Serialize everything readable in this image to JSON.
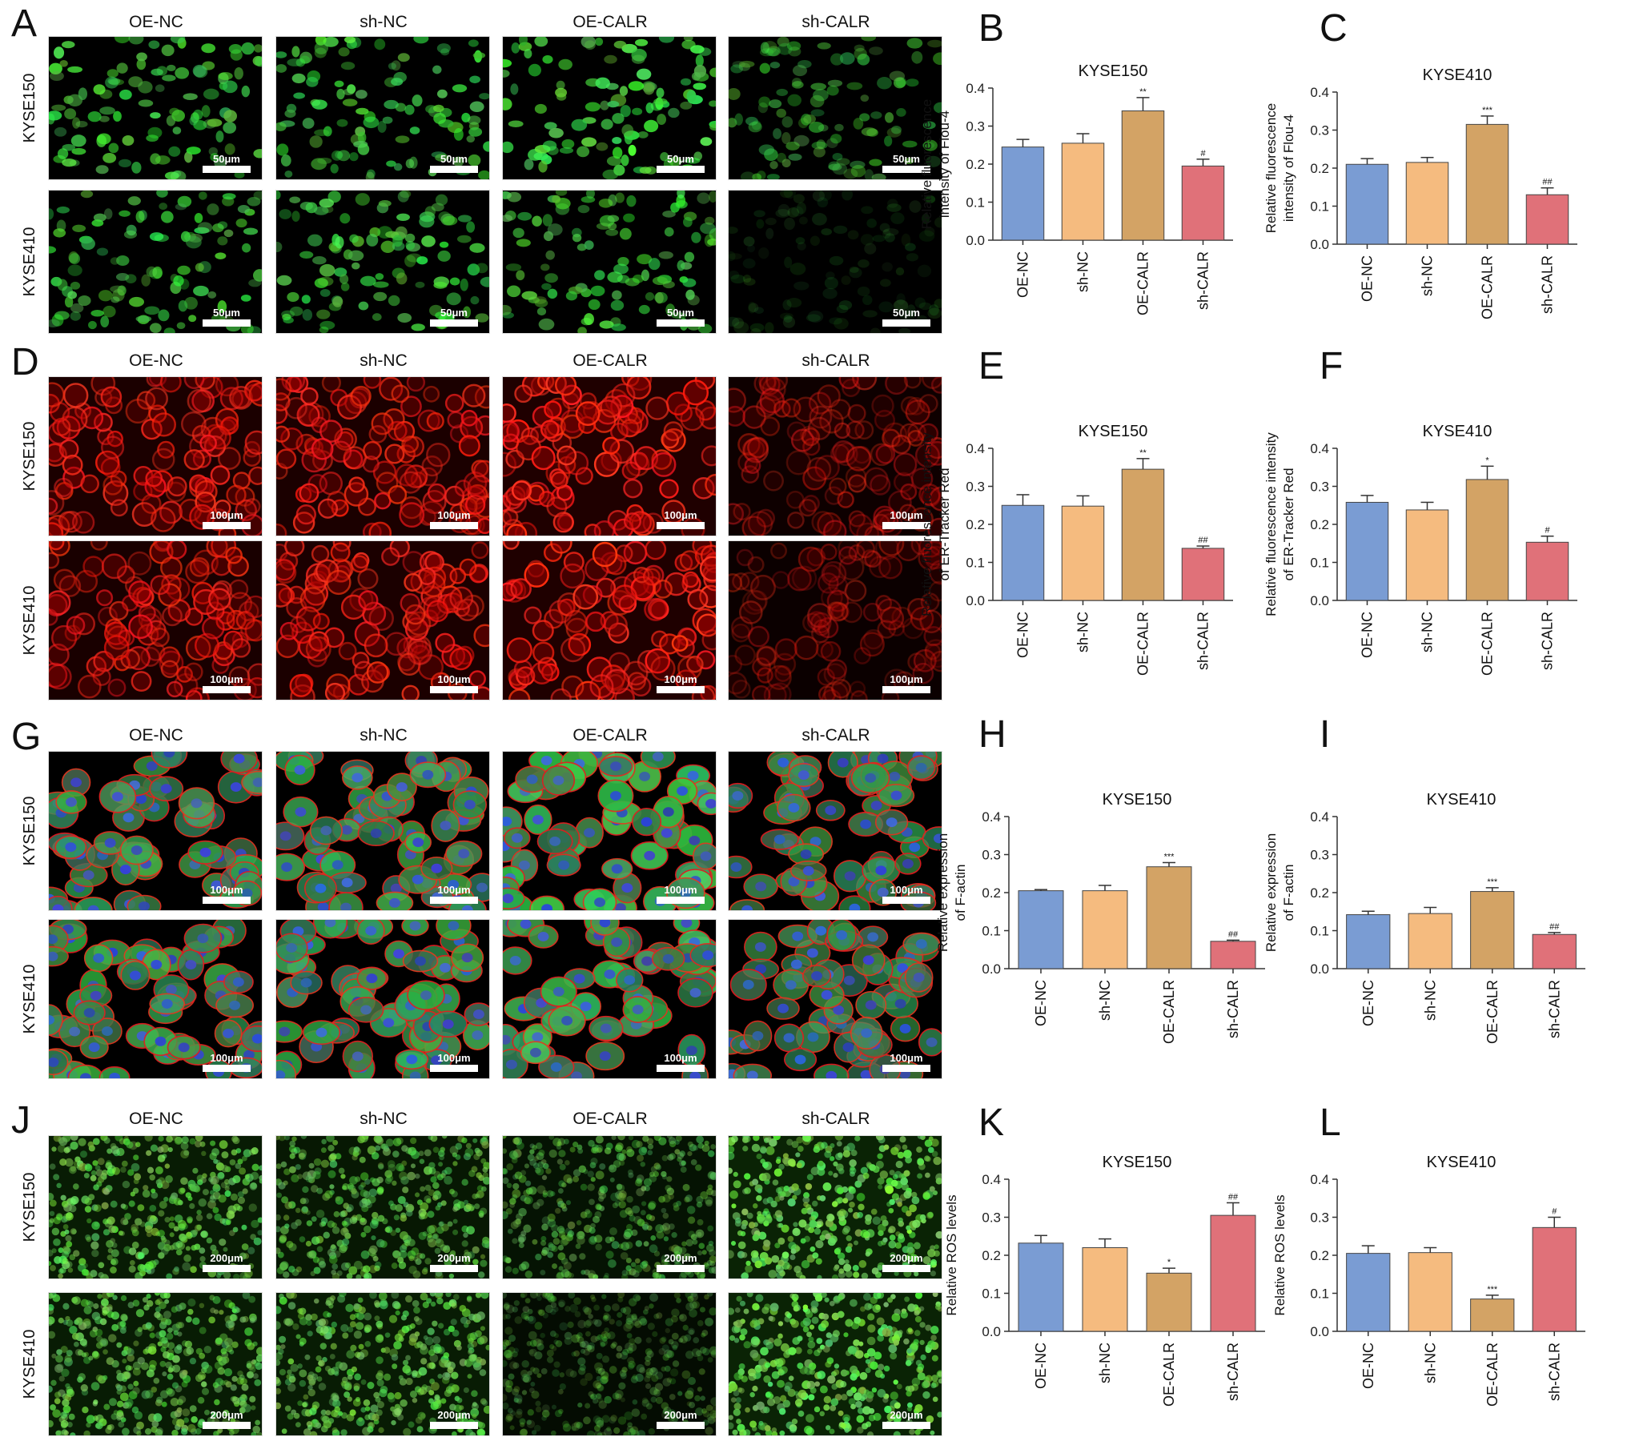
{
  "colors": {
    "OE-NC": "#7A9CD3",
    "sh-NC": "#F5BB7F",
    "OE-CALR": "#D3A365",
    "sh-CALR": "#E07179",
    "axis": "#333333"
  },
  "microscopy_columns": [
    "OE-NC",
    "sh-NC",
    "OE-CALR",
    "sh-CALR"
  ],
  "cell_lines": [
    "KYSE150",
    "KYSE410"
  ],
  "panels": [
    {
      "letter": "A",
      "stain": "green-cells",
      "scale_bars": [
        [
          "50μm",
          "50μm",
          "50μm",
          "50μm"
        ],
        [
          "50μm",
          "50μm",
          "50μm",
          "50μm"
        ]
      ],
      "brightness": [
        [
          0.85,
          0.85,
          1.0,
          0.55
        ],
        [
          0.8,
          0.8,
          0.8,
          0.15
        ]
      ]
    },
    {
      "letter": "D",
      "stain": "red-er",
      "scale_bars": [
        [
          "100μm",
          "100μm",
          "100μm",
          "100μm"
        ],
        [
          "100μm",
          "100μm",
          "100μm",
          "100μm"
        ]
      ],
      "brightness": [
        [
          0.85,
          0.85,
          1.0,
          0.45
        ],
        [
          0.8,
          0.85,
          1.0,
          0.35
        ]
      ]
    },
    {
      "letter": "G",
      "stain": "merged-factin",
      "scale_bars": [
        [
          "100μm",
          "100μm",
          "100μm",
          "100μm"
        ],
        [
          "100μm",
          "100μm",
          "100μm",
          "100μm"
        ]
      ],
      "brightness": [
        [
          0.7,
          0.75,
          1.0,
          0.55
        ],
        [
          0.75,
          0.75,
          0.9,
          0.5
        ]
      ]
    },
    {
      "letter": "J",
      "stain": "green-ros",
      "scale_bars": [
        [
          "200μm",
          "200μm",
          "200μm",
          "200μm"
        ],
        [
          "200μm",
          "200μm",
          "200μm",
          "200μm"
        ]
      ],
      "brightness": [
        [
          0.8,
          0.7,
          0.55,
          1.0
        ],
        [
          0.8,
          0.8,
          0.35,
          1.0
        ]
      ]
    }
  ],
  "chart_data": [
    {
      "panel": "B",
      "type": "bar",
      "title": "KYSE150",
      "ylabel_lines": [
        "Relative fluorescence",
        "intensity of Flou-4"
      ],
      "categories": [
        "OE-NC",
        "sh-NC",
        "OE-CALR",
        "sh-CALR"
      ],
      "values": [
        0.245,
        0.255,
        0.34,
        0.195
      ],
      "errors": [
        0.02,
        0.025,
        0.035,
        0.018
      ],
      "annotations": [
        "",
        "",
        "**",
        "#"
      ],
      "ylim": [
        0,
        0.4
      ],
      "yticks": [
        "0.0",
        "0.1",
        "0.2",
        "0.3",
        "0.4"
      ]
    },
    {
      "panel": "C",
      "type": "bar",
      "title": "KYSE410",
      "ylabel_lines": [
        "Relative fluorescence",
        "intensity of Flou-4"
      ],
      "categories": [
        "OE-NC",
        "sh-NC",
        "OE-CALR",
        "sh-CALR"
      ],
      "values": [
        0.21,
        0.215,
        0.315,
        0.13
      ],
      "errors": [
        0.015,
        0.013,
        0.022,
        0.018
      ],
      "annotations": [
        "",
        "",
        "***",
        "##"
      ],
      "ylim": [
        0,
        0.4
      ],
      "yticks": [
        "0.0",
        "0.1",
        "0.2",
        "0.3",
        "0.4"
      ]
    },
    {
      "panel": "E",
      "type": "bar",
      "title": "KYSE150",
      "ylabel_lines": [
        "Relative fluorescence intensity",
        "of ER-Tracker Red"
      ],
      "categories": [
        "OE-NC",
        "sh-NC",
        "OE-CALR",
        "sh-CALR"
      ],
      "values": [
        0.25,
        0.248,
        0.345,
        0.137
      ],
      "errors": [
        0.028,
        0.027,
        0.028,
        0.006
      ],
      "annotations": [
        "",
        "",
        "**",
        "##"
      ],
      "ylim": [
        0,
        0.4
      ],
      "yticks": [
        "0.0",
        "0.1",
        "0.2",
        "0.3",
        "0.4"
      ]
    },
    {
      "panel": "F",
      "type": "bar",
      "title": "KYSE410",
      "ylabel_lines": [
        "Relative fluorescence intensity",
        "of ER-Tracker Red"
      ],
      "categories": [
        "OE-NC",
        "sh-NC",
        "OE-CALR",
        "sh-CALR"
      ],
      "values": [
        0.258,
        0.238,
        0.318,
        0.153
      ],
      "errors": [
        0.018,
        0.02,
        0.035,
        0.016
      ],
      "annotations": [
        "",
        "",
        "*",
        "#"
      ],
      "ylim": [
        0,
        0.4
      ],
      "yticks": [
        "0.0",
        "0.1",
        "0.2",
        "0.3",
        "0.4"
      ]
    },
    {
      "panel": "H",
      "type": "bar",
      "title": "KYSE150",
      "ylabel_lines": [
        "Relative expression",
        "of F-actin"
      ],
      "categories": [
        "OE-NC",
        "sh-NC",
        "OE-CALR",
        "sh-CALR"
      ],
      "values": [
        0.205,
        0.205,
        0.268,
        0.072
      ],
      "errors": [
        0.003,
        0.014,
        0.011,
        0.003
      ],
      "annotations": [
        "",
        "",
        "***",
        "##"
      ],
      "ylim": [
        0,
        0.4
      ],
      "yticks": [
        "0.0",
        "0.1",
        "0.2",
        "0.3",
        "0.4"
      ]
    },
    {
      "panel": "I",
      "type": "bar",
      "title": "KYSE410",
      "ylabel_lines": [
        "Relative expression",
        "of F-actin"
      ],
      "categories": [
        "OE-NC",
        "sh-NC",
        "OE-CALR",
        "sh-CALR"
      ],
      "values": [
        0.142,
        0.145,
        0.203,
        0.09
      ],
      "errors": [
        0.009,
        0.016,
        0.01,
        0.005
      ],
      "annotations": [
        "",
        "",
        "***",
        "##"
      ],
      "ylim": [
        0,
        0.4
      ],
      "yticks": [
        "0.0",
        "0.1",
        "0.2",
        "0.3",
        "0.4"
      ]
    },
    {
      "panel": "K",
      "type": "bar",
      "title": "KYSE150",
      "ylabel_lines": [
        "Relative ROS levels"
      ],
      "categories": [
        "OE-NC",
        "sh-NC",
        "OE-CALR",
        "sh-CALR"
      ],
      "values": [
        0.232,
        0.22,
        0.153,
        0.305
      ],
      "errors": [
        0.02,
        0.023,
        0.013,
        0.033
      ],
      "annotations": [
        "",
        "",
        "*",
        "##"
      ],
      "ylim": [
        0,
        0.4
      ],
      "yticks": [
        "0.0",
        "0.1",
        "0.2",
        "0.3",
        "0.4"
      ]
    },
    {
      "panel": "L",
      "type": "bar",
      "title": "KYSE410",
      "ylabel_lines": [
        "Relative ROS levels"
      ],
      "categories": [
        "OE-NC",
        "sh-NC",
        "OE-CALR",
        "sh-CALR"
      ],
      "values": [
        0.205,
        0.207,
        0.085,
        0.273
      ],
      "errors": [
        0.02,
        0.013,
        0.01,
        0.027
      ],
      "annotations": [
        "",
        "",
        "***",
        "#"
      ],
      "ylim": [
        0,
        0.4
      ],
      "yticks": [
        "0.0",
        "0.1",
        "0.2",
        "0.3",
        "0.4"
      ]
    }
  ]
}
